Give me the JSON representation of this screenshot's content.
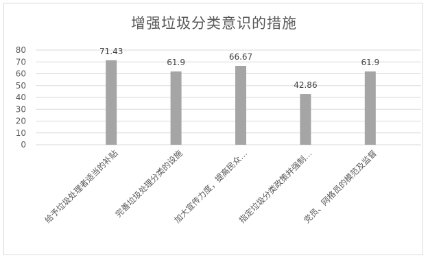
{
  "chart_data": {
    "type": "bar",
    "title": "增强垃圾分类意识的措施",
    "categories": [
      "给予垃圾处理者适当的补贴",
      "完善垃圾处理分类的设施",
      "加大宣传力度，提高民众…",
      "指定垃圾分类政策并强制…",
      "党员、网格员的模范及监督"
    ],
    "values": [
      71.43,
      61.9,
      66.67,
      42.86,
      61.9
    ],
    "value_labels": [
      "71.43",
      "61.9",
      "66.67",
      "42.86",
      "61.9"
    ],
    "ylim": [
      0,
      80
    ],
    "yticks": [
      0,
      10,
      20,
      30,
      40,
      50,
      60,
      70,
      80
    ],
    "xlabel": "",
    "ylabel": "",
    "grid": true,
    "legend": "none",
    "bar_color": "#a5a5a5",
    "grid_color": "#d9d9d9"
  }
}
